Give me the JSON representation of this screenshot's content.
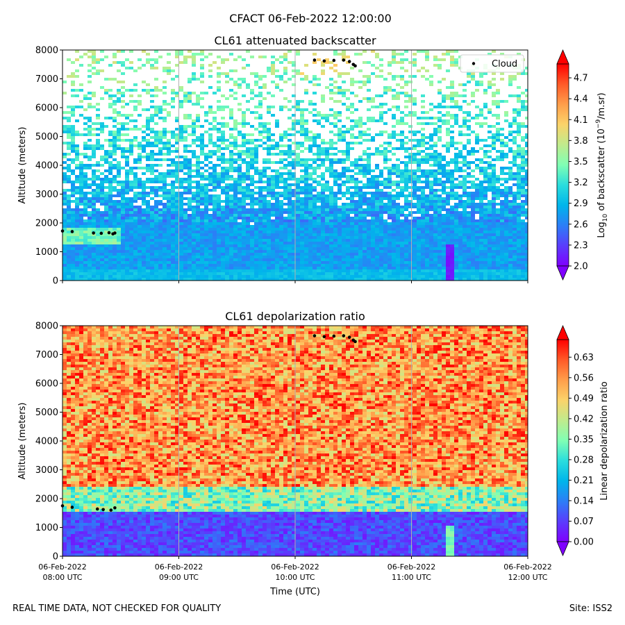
{
  "figure_title": "CFACT 06-Feb-2022 12:00:00",
  "footer_left": "REAL TIME DATA, NOT CHECKED FOR QUALITY",
  "footer_right": "Site: ISS2",
  "colormap": [
    "#7f00ff",
    "#5a3dfc",
    "#2c7ef7",
    "#00b5eb",
    "#2adddd",
    "#80ffb4",
    "#c0eb8d",
    "#fbd36a",
    "#ff9e4a",
    "#ff5a28",
    "#ff0000"
  ],
  "chart_data": [
    {
      "type": "heatmap",
      "title": "CL61 attenuated backscatter",
      "xlabel": "",
      "ylabel": "Altitude (meters)",
      "xlim": [
        "06-Feb-2022 08:00 UTC",
        "06-Feb-2022 12:00 UTC"
      ],
      "ylim": [
        0,
        8000
      ],
      "yticks": [
        0,
        1000,
        2000,
        3000,
        4000,
        5000,
        6000,
        7000,
        8000
      ],
      "xticks_shown": false,
      "grid": "vertical",
      "colorbar": {
        "label_prefix": "Log",
        "label_sub": "10",
        "label_mid": " of backscatter (10",
        "label_sup": "−9",
        "label_suffix": "/m.sr)",
        "range": [
          2.0,
          4.9
        ],
        "ticks": [
          "2.0",
          "2.3",
          "2.6",
          "2.9",
          "3.2",
          "3.5",
          "3.8",
          "4.1",
          "4.4",
          "4.7"
        ],
        "extend": "both"
      },
      "legend": {
        "placement": "top-right",
        "entries": [
          "Cloud"
        ]
      },
      "cloud_points": [
        {
          "time": "08:00",
          "alt": 1720
        },
        {
          "time": "08:05",
          "alt": 1700
        },
        {
          "time": "08:16",
          "alt": 1650
        },
        {
          "time": "08:20",
          "alt": 1640
        },
        {
          "time": "08:24",
          "alt": 1660
        },
        {
          "time": "08:26",
          "alt": 1620
        },
        {
          "time": "08:27",
          "alt": 1650
        },
        {
          "time": "10:10",
          "alt": 7650
        },
        {
          "time": "10:15",
          "alt": 7620
        },
        {
          "time": "10:20",
          "alt": 7640
        },
        {
          "time": "10:25",
          "alt": 7650
        },
        {
          "time": "10:28",
          "alt": 7600
        },
        {
          "time": "10:30",
          "alt": 7500
        },
        {
          "time": "10:31",
          "alt": 7450
        }
      ]
    },
    {
      "type": "heatmap",
      "title": "CL61 depolarization ratio",
      "xlabel": "Time (UTC)",
      "ylabel": "Altitude (meters)",
      "xlim": [
        "06-Feb-2022 08:00 UTC",
        "06-Feb-2022 12:00 UTC"
      ],
      "ylim": [
        0,
        8000
      ],
      "yticks": [
        0,
        1000,
        2000,
        3000,
        4000,
        5000,
        6000,
        7000,
        8000
      ],
      "xticks": [
        {
          "line1": "06-Feb-2022",
          "line2": "08:00 UTC"
        },
        {
          "line1": "06-Feb-2022",
          "line2": "09:00 UTC"
        },
        {
          "line1": "06-Feb-2022",
          "line2": "10:00 UTC"
        },
        {
          "line1": "06-Feb-2022",
          "line2": "11:00 UTC"
        },
        {
          "line1": "06-Feb-2022",
          "line2": "12:00 UTC"
        }
      ],
      "grid": "vertical",
      "colorbar": {
        "label": "Linear depolarization ratio",
        "range": [
          0.0,
          0.69
        ],
        "ticks": [
          "0.00",
          "0.07",
          "0.14",
          "0.21",
          "0.28",
          "0.35",
          "0.42",
          "0.49",
          "0.56",
          "0.63"
        ],
        "extend": "both"
      },
      "cloud_points": [
        {
          "time": "08:00",
          "alt": 1750
        },
        {
          "time": "08:05",
          "alt": 1700
        },
        {
          "time": "08:18",
          "alt": 1640
        },
        {
          "time": "08:21",
          "alt": 1620
        },
        {
          "time": "08:25",
          "alt": 1600
        },
        {
          "time": "08:27",
          "alt": 1680
        },
        {
          "time": "10:10",
          "alt": 7650
        },
        {
          "time": "10:15",
          "alt": 7620
        },
        {
          "time": "10:20",
          "alt": 7640
        },
        {
          "time": "10:25",
          "alt": 7650
        },
        {
          "time": "10:28",
          "alt": 7600
        },
        {
          "time": "10:30",
          "alt": 7500
        },
        {
          "time": "10:31",
          "alt": 7450
        }
      ]
    }
  ]
}
